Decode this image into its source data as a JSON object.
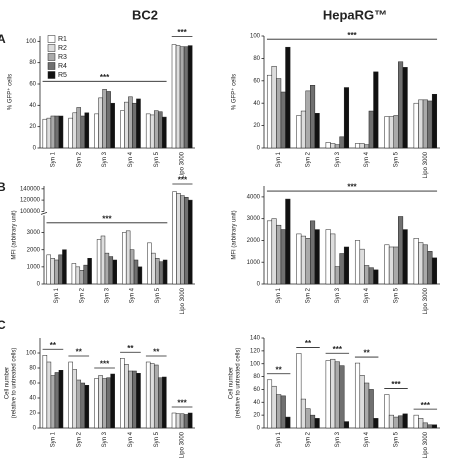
{
  "figure": {
    "columns": [
      "BC2",
      "HepaRG™"
    ],
    "panels": [
      "A",
      "B",
      "C"
    ]
  },
  "chart_data": [
    {
      "type": "bar",
      "ylabel": [
        "% GFP⁺ cells"
      ],
      "categories": [
        "Syn 1",
        "Syn 2",
        "Syn 3",
        "Syn 4",
        "Syn 5",
        "Lipo 3000"
      ],
      "ylim": [
        0,
        105
      ],
      "yticks": [
        0,
        20,
        40,
        60,
        80,
        100
      ],
      "legend": "upper left",
      "significance": [
        "***",
        "***"
      ],
      "series": [
        {
          "name": "R1",
          "color": "#ffffff",
          "values": [
            27,
            28,
            32,
            35,
            32,
            97
          ]
        },
        {
          "name": "R2",
          "color": "#dddddd",
          "values": [
            28,
            33,
            47,
            43,
            31,
            96
          ]
        },
        {
          "name": "R3",
          "color": "#aaaaaa",
          "values": [
            30,
            38,
            55,
            48,
            35,
            95
          ]
        },
        {
          "name": "R4",
          "color": "#707070",
          "values": [
            30,
            30,
            53,
            42,
            34,
            95
          ]
        },
        {
          "name": "R5",
          "color": "#111111",
          "values": [
            30,
            33,
            42,
            46,
            29,
            96
          ]
        }
      ]
    },
    {
      "type": "bar",
      "ylabel": [
        "% GFP⁺ cells"
      ],
      "categories": [
        "Syn 1",
        "Syn 2",
        "Syn 3",
        "Syn 4",
        "Syn 5",
        "Lipo 3000"
      ],
      "ylim": [
        0,
        100
      ],
      "yticks": [
        0,
        20,
        40,
        60,
        80,
        100
      ],
      "significance": [
        "***"
      ],
      "series": [
        {
          "color": "#ffffff",
          "values": [
            65,
            29,
            5,
            4,
            28,
            40
          ]
        },
        {
          "color": "#dddddd",
          "values": [
            73,
            33,
            4,
            4,
            28,
            43
          ]
        },
        {
          "color": "#aaaaaa",
          "values": [
            62,
            51,
            3,
            3,
            29,
            43
          ]
        },
        {
          "color": "#707070",
          "values": [
            50,
            56,
            10,
            33,
            77,
            42
          ]
        },
        {
          "color": "#111111",
          "values": [
            90,
            31,
            54,
            68,
            72,
            48
          ]
        }
      ]
    },
    {
      "type": "bar",
      "ylabel": [
        "MFI (arbitrary unit)"
      ],
      "categories": [
        "Syn 1",
        "Syn 2",
        "Syn 3",
        "Syn 4",
        "Syn 5",
        "Lipo 3000"
      ],
      "ylim": [
        0,
        145000
      ],
      "ybreak": [
        4000,
        100000
      ],
      "yticks": [
        0,
        1000,
        2000,
        3000,
        100000,
        120000,
        140000
      ],
      "significance": [
        "***",
        "***"
      ],
      "series": [
        {
          "color": "#ffffff",
          "values": [
            1700,
            1200,
            2600,
            3000,
            2400,
            135000
          ]
        },
        {
          "color": "#dddddd",
          "values": [
            1500,
            1000,
            2800,
            3100,
            1800,
            132000
          ]
        },
        {
          "color": "#aaaaaa",
          "values": [
            1400,
            800,
            1800,
            2000,
            1500,
            128000
          ]
        },
        {
          "color": "#707070",
          "values": [
            1700,
            1100,
            1600,
            1400,
            1300,
            125000
          ]
        },
        {
          "color": "#111111",
          "values": [
            2000,
            1500,
            1400,
            1000,
            1400,
            120000
          ]
        }
      ]
    },
    {
      "type": "bar",
      "ylabel": [
        "MFI (arbitrary unit)"
      ],
      "categories": [
        "Syn 1",
        "Syn 2",
        "Syn 3",
        "Syn 4",
        "Syn 5",
        "Lipo 3000"
      ],
      "ylim": [
        0,
        4500
      ],
      "yticks": [
        0,
        1000,
        2000,
        3000,
        4000
      ],
      "significance": [
        "***"
      ],
      "series": [
        {
          "color": "#ffffff",
          "values": [
            2900,
            2300,
            2500,
            2000,
            1800,
            2100
          ]
        },
        {
          "color": "#dddddd",
          "values": [
            3000,
            2200,
            2300,
            1600,
            1700,
            1900
          ]
        },
        {
          "color": "#aaaaaa",
          "values": [
            2700,
            2100,
            800,
            850,
            1700,
            1800
          ]
        },
        {
          "color": "#707070",
          "values": [
            2500,
            2900,
            1400,
            750,
            3100,
            1500
          ]
        },
        {
          "color": "#111111",
          "values": [
            3900,
            2500,
            1700,
            650,
            2500,
            1200
          ]
        }
      ]
    },
    {
      "type": "bar",
      "ylabel": [
        "Cell number",
        "(relative to untreated cells)"
      ],
      "categories": [
        "Syn 1",
        "Syn 2",
        "Syn 3",
        "Syn 4",
        "Syn 5",
        "Lipo 3000"
      ],
      "ylim": [
        0,
        120
      ],
      "yticks": [
        0,
        20,
        40,
        60,
        80,
        100
      ],
      "significance": [
        "**",
        "**",
        "***",
        "**",
        "**",
        "***"
      ],
      "series": [
        {
          "color": "#ffffff",
          "values": [
            97,
            88,
            66,
            93,
            88,
            20
          ]
        },
        {
          "color": "#dddddd",
          "values": [
            88,
            78,
            70,
            85,
            86,
            19
          ]
        },
        {
          "color": "#aaaaaa",
          "values": [
            70,
            64,
            66,
            76,
            84,
            19
          ]
        },
        {
          "color": "#707070",
          "values": [
            74,
            60,
            67,
            76,
            67,
            18
          ]
        },
        {
          "color": "#111111",
          "values": [
            77,
            57,
            72,
            73,
            68,
            20
          ]
        }
      ]
    },
    {
      "type": "bar",
      "ylabel": [
        "Cell number",
        "(relative to untreated cells)"
      ],
      "categories": [
        "Syn 1",
        "Syn 2",
        "Syn 3",
        "Syn 4",
        "Syn 5",
        "Lipo 3000"
      ],
      "ylim": [
        0,
        140
      ],
      "yticks": [
        0,
        20,
        40,
        60,
        80,
        100,
        120,
        140
      ],
      "significance": [
        "**",
        "**",
        "***",
        "**",
        "***",
        "***"
      ],
      "series": [
        {
          "color": "#ffffff",
          "values": [
            75,
            116,
            105,
            101,
            52,
            20
          ]
        },
        {
          "color": "#dddddd",
          "values": [
            65,
            45,
            107,
            82,
            20,
            15
          ]
        },
        {
          "color": "#aaaaaa",
          "values": [
            52,
            30,
            103,
            70,
            17,
            8
          ]
        },
        {
          "color": "#707070",
          "values": [
            50,
            20,
            97,
            60,
            19,
            5
          ]
        },
        {
          "color": "#111111",
          "values": [
            17,
            15,
            10,
            15,
            22,
            5
          ]
        }
      ]
    }
  ]
}
